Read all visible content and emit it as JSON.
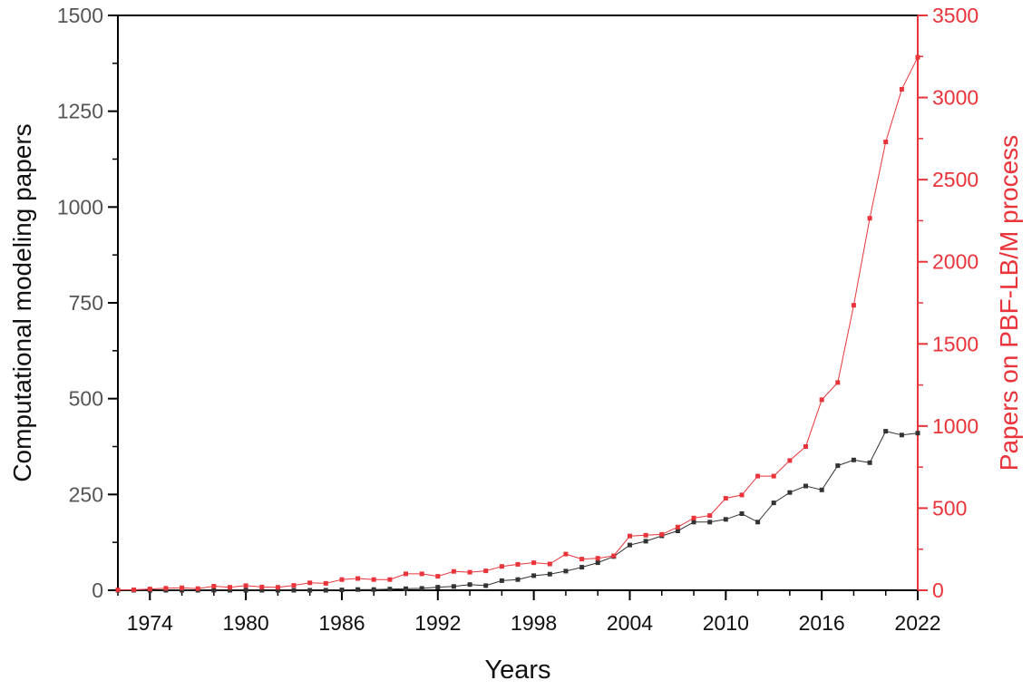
{
  "chart_data": {
    "type": "line",
    "title": "",
    "xlabel": "Years",
    "ylabel": "Computational modeling papers",
    "y2label": "Papers on PBF-LB/M process",
    "xlim": [
      1972,
      2022
    ],
    "ylim": [
      0,
      1500
    ],
    "y2lim": [
      0,
      3500
    ],
    "x_ticks": [
      "1974",
      "1980",
      "1986",
      "1992",
      "1998",
      "2004",
      "2010",
      "2016",
      "2022"
    ],
    "y_ticks": [
      "0",
      "250",
      "500",
      "750",
      "1000",
      "1250",
      "1500"
    ],
    "y2_ticks": [
      "0",
      "500",
      "1000",
      "1500",
      "2000",
      "2500",
      "3000",
      "3500"
    ],
    "grid": false,
    "colors": {
      "left": "#333333",
      "right": "#e8343a",
      "left_axis_text": "#555555"
    },
    "series": [
      {
        "axis": "left",
        "color": "#333333",
        "x": [
          1972,
          1973,
          1974,
          1975,
          1976,
          1977,
          1978,
          1979,
          1980,
          1981,
          1982,
          1983,
          1984,
          1985,
          1986,
          1987,
          1988,
          1989,
          1990,
          1991,
          1992,
          1993,
          1994,
          1995,
          1996,
          1997,
          1998,
          1999,
          2000,
          2001,
          2002,
          2003,
          2004,
          2005,
          2006,
          2007,
          2008,
          2009,
          2010,
          2011,
          2012,
          2013,
          2014,
          2015,
          2016,
          2017,
          2018,
          2019,
          2020,
          2021,
          2022
        ],
        "values": [
          0,
          0,
          0,
          0,
          0,
          0,
          0,
          0,
          0,
          0,
          0,
          0,
          0,
          0,
          1,
          2,
          2,
          3,
          4,
          5,
          8,
          10,
          15,
          12,
          25,
          28,
          38,
          42,
          50,
          60,
          72,
          88,
          118,
          128,
          142,
          155,
          178,
          178,
          185,
          200,
          178,
          228,
          255,
          272,
          262,
          325,
          340,
          333,
          415,
          405,
          410
        ]
      },
      {
        "axis": "right",
        "color": "#e8343a",
        "x": [
          1972,
          1973,
          1974,
          1975,
          1976,
          1977,
          1978,
          1979,
          1980,
          1981,
          1982,
          1983,
          1984,
          1985,
          1986,
          1987,
          1988,
          1989,
          1990,
          1991,
          1992,
          1993,
          1994,
          1995,
          1996,
          1997,
          1998,
          1999,
          2000,
          2001,
          2002,
          2003,
          2004,
          2005,
          2006,
          2007,
          2008,
          2009,
          2010,
          2011,
          2012,
          2013,
          2014,
          2015,
          2016,
          2017,
          2018,
          2019,
          2020,
          2021,
          2022
        ],
        "values": [
          2,
          3,
          8,
          12,
          15,
          10,
          25,
          18,
          28,
          20,
          18,
          30,
          45,
          42,
          65,
          72,
          65,
          65,
          100,
          100,
          85,
          115,
          110,
          118,
          145,
          158,
          168,
          160,
          220,
          190,
          195,
          210,
          330,
          335,
          340,
          385,
          440,
          455,
          560,
          580,
          695,
          695,
          790,
          875,
          1160,
          1265,
          1735,
          2265,
          2730,
          3050,
          3245
        ]
      }
    ]
  }
}
